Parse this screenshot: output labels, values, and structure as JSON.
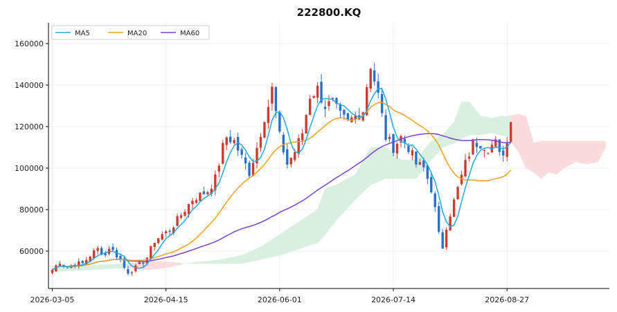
{
  "chart_data": {
    "type": "candlestick",
    "title": "222800.KQ",
    "colors": {
      "up": "#cc3b2f",
      "down": "#2a6fc9",
      "ma5": "#1fa7e0",
      "ma20": "#f2a11f",
      "ma60": "#7b3fd6",
      "cloud_bull": "#d9efe0",
      "cloud_bear": "#fbdcdc",
      "grid": "#eeeeee",
      "axis": "#000000"
    },
    "x_ticks": [
      {
        "index": 0,
        "label": "2026-03-05"
      },
      {
        "index": 30,
        "label": "2026-04-15"
      },
      {
        "index": 60,
        "label": "2026-06-01"
      },
      {
        "index": 90,
        "label": "2026-07-14"
      },
      {
        "index": 120,
        "label": "2026-08-27"
      }
    ],
    "y_ticks": [
      60000,
      80000,
      100000,
      120000,
      140000,
      160000
    ],
    "ylim": [
      42000,
      170000
    ],
    "xlim": [
      -1,
      147
    ],
    "legend": {
      "position": "top-left",
      "entries": [
        {
          "key": "ma5",
          "label": "MA5"
        },
        {
          "key": "ma20",
          "label": "MA20"
        },
        {
          "key": "ma60",
          "label": "MA60"
        }
      ]
    },
    "grid": true,
    "candle_keyframes": [
      [
        0,
        51000
      ],
      [
        2,
        55000
      ],
      [
        4,
        52000
      ],
      [
        6,
        54000
      ],
      [
        8,
        54000
      ],
      [
        10,
        58000
      ],
      [
        12,
        61000
      ],
      [
        14,
        58000
      ],
      [
        15,
        62000
      ],
      [
        16,
        60000
      ],
      [
        18,
        56000
      ],
      [
        19,
        52000
      ],
      [
        20,
        50000
      ],
      [
        22,
        52000
      ],
      [
        24,
        55000
      ],
      [
        25,
        57000
      ],
      [
        27,
        65000
      ],
      [
        29,
        68000
      ],
      [
        31,
        70000
      ],
      [
        33,
        75000
      ],
      [
        35,
        80000
      ],
      [
        37,
        85000
      ],
      [
        39,
        87000
      ],
      [
        41,
        89000
      ],
      [
        43,
        95000
      ],
      [
        45,
        110000
      ],
      [
        46,
        115000
      ],
      [
        48,
        113000
      ],
      [
        50,
        105000
      ],
      [
        52,
        98000
      ],
      [
        54,
        110000
      ],
      [
        56,
        125000
      ],
      [
        57,
        130000
      ],
      [
        58,
        138000
      ],
      [
        60,
        115000
      ],
      [
        62,
        102000
      ],
      [
        64,
        108000
      ],
      [
        66,
        117000
      ],
      [
        68,
        135000
      ],
      [
        70,
        138000
      ],
      [
        72,
        130000
      ],
      [
        74,
        131000
      ],
      [
        76,
        125000
      ],
      [
        78,
        122000
      ],
      [
        80,
        125000
      ],
      [
        82,
        128000
      ],
      [
        83,
        140000
      ],
      [
        84,
        150000
      ],
      [
        86,
        135000
      ],
      [
        88,
        115000
      ],
      [
        90,
        110000
      ],
      [
        92,
        115000
      ],
      [
        94,
        110000
      ],
      [
        96,
        102000
      ],
      [
        98,
        100000
      ],
      [
        100,
        90000
      ],
      [
        101,
        80000
      ],
      [
        102,
        68000
      ],
      [
        103,
        62000
      ],
      [
        104,
        72000
      ],
      [
        105,
        78000
      ],
      [
        107,
        90000
      ],
      [
        109,
        102000
      ],
      [
        111,
        112000
      ],
      [
        113,
        112000
      ],
      [
        115,
        110000
      ],
      [
        117,
        112000
      ],
      [
        118,
        106000
      ],
      [
        119,
        108000
      ],
      [
        120,
        112000
      ],
      [
        121,
        125000
      ]
    ],
    "last_index": 121,
    "ichimoku_cloud": [
      [
        0,
        52000,
        50000
      ],
      [
        10,
        53000,
        51000
      ],
      [
        20,
        54000,
        52000
      ],
      [
        25,
        55000,
        51000
      ],
      [
        30,
        55000,
        52000
      ],
      [
        35,
        54000,
        54000
      ],
      [
        40,
        55000,
        54000
      ],
      [
        45,
        56000,
        54000
      ],
      [
        50,
        58000,
        54000
      ],
      [
        55,
        62000,
        56000
      ],
      [
        60,
        68000,
        58000
      ],
      [
        65,
        74000,
        61000
      ],
      [
        70,
        80000,
        64000
      ],
      [
        72,
        90000,
        68000
      ],
      [
        75,
        92000,
        75000
      ],
      [
        80,
        97000,
        85000
      ],
      [
        84,
        110000,
        92000
      ],
      [
        88,
        110000,
        95000
      ],
      [
        92,
        104000,
        95000
      ],
      [
        96,
        104000,
        95000
      ],
      [
        100,
        113000,
        104000
      ],
      [
        103,
        116000,
        110000
      ],
      [
        106,
        122000,
        112000
      ],
      [
        108,
        132000,
        114000
      ],
      [
        110,
        132000,
        116000
      ],
      [
        113,
        125000,
        116000
      ],
      [
        116,
        124000,
        117000
      ],
      [
        118,
        125000,
        116000
      ],
      [
        120,
        125000,
        115000
      ],
      [
        123,
        126000,
        108000
      ],
      [
        125,
        125000,
        100000
      ],
      [
        127,
        112000,
        98000
      ],
      [
        129,
        113000,
        95000
      ],
      [
        131,
        113000,
        98000
      ],
      [
        133,
        113000,
        97000
      ],
      [
        135,
        113000,
        100000
      ],
      [
        138,
        113000,
        103000
      ],
      [
        141,
        113000,
        102000
      ],
      [
        144,
        113000,
        103000
      ],
      [
        146,
        113000,
        110000
      ]
    ]
  }
}
